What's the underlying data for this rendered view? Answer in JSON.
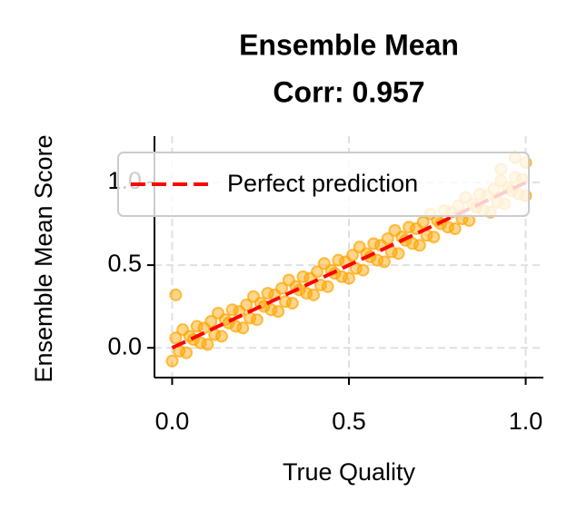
{
  "chart_data": {
    "type": "scatter",
    "title": "Ensemble Mean",
    "subtitle": "Corr: 0.957",
    "x_label": "True Quality",
    "y_label": "Ensemble Mean Score",
    "xlim": [
      -0.05,
      1.05
    ],
    "ylim": [
      -0.18,
      1.28
    ],
    "xticks": [
      {
        "value": 0,
        "label": "0.0"
      },
      {
        "value": 0.5,
        "label": "0.5"
      },
      {
        "value": 1,
        "label": "1.0"
      }
    ],
    "yticks": [
      {
        "value": 0,
        "label": "0.0"
      },
      {
        "value": 0.5,
        "label": "0.5"
      },
      {
        "value": 1,
        "label": "1.0"
      }
    ],
    "grid": true,
    "legend": "upper center",
    "series": [
      {
        "color": "#ffa500",
        "x": [
          0.01,
          0.02,
          0.03,
          0.04,
          0.05,
          0.06,
          0.07,
          0.08,
          0.09,
          0.1,
          0.11,
          0.12,
          0.13,
          0.14,
          0.15,
          0.16,
          0.17,
          0.18,
          0.19,
          0.2,
          0.21,
          0.22,
          0.23,
          0.24,
          0.25,
          0.26,
          0.27,
          0.28,
          0.29,
          0.3,
          0.31,
          0.32,
          0.33,
          0.34,
          0.35,
          0.36,
          0.37,
          0.38,
          0.39,
          0.4,
          0.41,
          0.42,
          0.43,
          0.44,
          0.45,
          0.46,
          0.47,
          0.48,
          0.49,
          0.5,
          0.51,
          0.52,
          0.53,
          0.54,
          0.55,
          0.56,
          0.57,
          0.58,
          0.59,
          0.6,
          0.61,
          0.62,
          0.63,
          0.64,
          0.65,
          0.66,
          0.67,
          0.68,
          0.69,
          0.7,
          0.71,
          0.72,
          0.73,
          0.74,
          0.75,
          0.76,
          0.77,
          0.78,
          0.79,
          0.8,
          0.81,
          0.82,
          0.83,
          0.84,
          0.85,
          0.86,
          0.87,
          0.88,
          0.89,
          0.9,
          0.91,
          0.92,
          0.93,
          0.94,
          0.95,
          0.96,
          0.97,
          0.98,
          0.99,
          1.0,
          0.0,
          0.01,
          1.0,
          0.97,
          0.93
        ],
        "y": [
          0.06,
          -0.02,
          0.11,
          -0.03,
          0.07,
          0.05,
          0.13,
          0.03,
          0.12,
          0.02,
          0.16,
          0.08,
          0.21,
          0.07,
          0.17,
          0.15,
          0.23,
          0.13,
          0.22,
          0.12,
          0.26,
          0.18,
          0.31,
          0.17,
          0.27,
          0.25,
          0.33,
          0.23,
          0.32,
          0.22,
          0.36,
          0.28,
          0.41,
          0.27,
          0.37,
          0.35,
          0.43,
          0.33,
          0.42,
          0.32,
          0.46,
          0.38,
          0.51,
          0.37,
          0.47,
          0.45,
          0.53,
          0.43,
          0.52,
          0.42,
          0.56,
          0.48,
          0.61,
          0.47,
          0.57,
          0.55,
          0.63,
          0.53,
          0.62,
          0.52,
          0.66,
          0.58,
          0.71,
          0.57,
          0.67,
          0.65,
          0.73,
          0.63,
          0.72,
          0.62,
          0.76,
          0.68,
          0.81,
          0.67,
          0.77,
          0.75,
          0.83,
          0.73,
          0.82,
          0.72,
          0.86,
          0.78,
          0.91,
          0.77,
          0.87,
          0.85,
          0.93,
          0.83,
          0.92,
          0.82,
          0.96,
          0.88,
          1.01,
          0.87,
          0.97,
          0.95,
          1.03,
          0.93,
          1.02,
          0.92,
          -0.08,
          0.32,
          1.12,
          1.15,
          1.08
        ]
      }
    ],
    "reference_line": {
      "name": "Perfect prediction",
      "color": "#ff0000",
      "x": [
        0,
        1
      ],
      "y": [
        0,
        1
      ]
    }
  }
}
